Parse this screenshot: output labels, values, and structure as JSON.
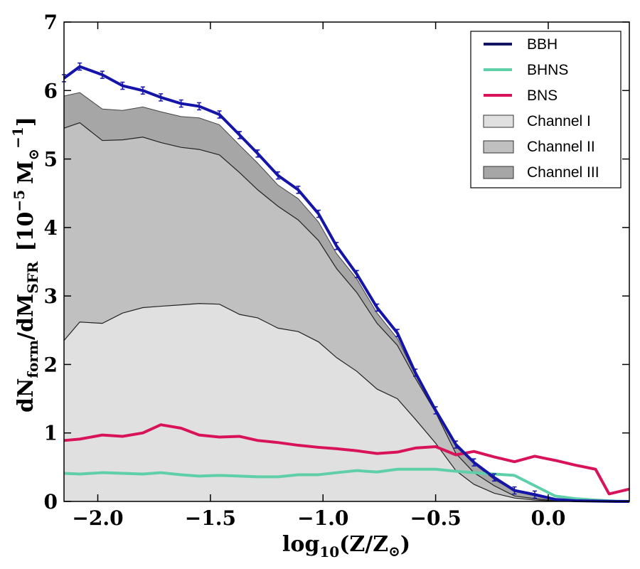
{
  "chart_data": {
    "type": "area",
    "xlabel": "log10(Z/Z⊙)",
    "xlabel_parts": {
      "main": "log",
      "sub": "10",
      "rest": "(Z/Z",
      "sun": "⊙",
      "close": ")"
    },
    "ylabel_parts": {
      "d1": "dN",
      "sub1": "form",
      "slash": "/dM",
      "sub2": "SFR",
      "unit": "[10",
      "exp": "−5",
      "unitM": "M",
      "sunsub": "⊙",
      "minus1": "−1",
      "close": "]"
    },
    "xlim": [
      -2.15,
      0.36
    ],
    "ylim": [
      0,
      7
    ],
    "xticks": [
      -2.0,
      -1.5,
      -1.0,
      -0.5,
      0.0
    ],
    "xtick_labels": [
      "−2.0",
      "−1.5",
      "−1.0",
      "−0.5",
      "0.0"
    ],
    "yticks": [
      0,
      1,
      2,
      3,
      4,
      5,
      6,
      7
    ],
    "ytick_labels": [
      "0",
      "1",
      "2",
      "3",
      "4",
      "5",
      "6",
      "7"
    ],
    "legend": {
      "position": "top-right",
      "entries": [
        {
          "label": "BBH",
          "kind": "line",
          "color": "#141464"
        },
        {
          "label": "BHNS",
          "kind": "line",
          "color": "#5fcfa8"
        },
        {
          "label": "BNS",
          "kind": "line",
          "color": "#d8135a"
        },
        {
          "label": "Channel I",
          "kind": "patch",
          "color": "#e0e0e0"
        },
        {
          "label": "Channel II",
          "kind": "patch",
          "color": "#c0c0c0"
        },
        {
          "label": "Channel III",
          "kind": "patch",
          "color": "#a6a6a6"
        }
      ]
    },
    "stacked_areas": {
      "x": [
        -2.15,
        -2.08,
        -1.98,
        -1.89,
        -1.8,
        -1.72,
        -1.63,
        -1.55,
        -1.46,
        -1.37,
        -1.29,
        -1.2,
        -1.11,
        -1.02,
        -0.94,
        -0.85,
        -0.76,
        -0.67,
        -0.59,
        -0.5,
        -0.41,
        -0.33,
        -0.24,
        -0.15,
        -0.06,
        0.03,
        0.12,
        0.21,
        0.3,
        0.36
      ],
      "series": [
        {
          "name": "Channel I",
          "color": "#e0e0e0",
          "cumulative": [
            2.35,
            2.62,
            2.6,
            2.75,
            2.83,
            2.85,
            2.87,
            2.89,
            2.88,
            2.73,
            2.68,
            2.53,
            2.48,
            2.33,
            2.1,
            1.9,
            1.64,
            1.5,
            1.2,
            0.85,
            0.45,
            0.25,
            0.12,
            0.05,
            0.02,
            0.005,
            0.0,
            0.0,
            0.0,
            0.0
          ]
        },
        {
          "name": "Channel II",
          "color": "#c0c0c0",
          "cumulative": [
            5.45,
            5.53,
            5.27,
            5.28,
            5.32,
            5.24,
            5.17,
            5.14,
            5.06,
            4.8,
            4.55,
            4.31,
            4.11,
            3.81,
            3.4,
            3.05,
            2.6,
            2.28,
            1.8,
            1.3,
            0.7,
            0.42,
            0.23,
            0.08,
            0.04,
            0.01,
            0.0,
            0.0,
            0.0,
            0.0
          ]
        },
        {
          "name": "Channel III",
          "color": "#a6a6a6",
          "cumulative": [
            5.92,
            5.97,
            5.73,
            5.71,
            5.76,
            5.69,
            5.62,
            5.6,
            5.5,
            5.2,
            4.94,
            4.62,
            4.42,
            4.08,
            3.62,
            3.25,
            2.75,
            2.38,
            1.85,
            1.33,
            0.8,
            0.55,
            0.32,
            0.15,
            0.08,
            0.02,
            0.0,
            0.0,
            0.0,
            0.0
          ]
        }
      ]
    },
    "series": [
      {
        "name": "BBH",
        "color": "#1414a8",
        "width": 4,
        "x": [
          -2.15,
          -2.08,
          -1.98,
          -1.89,
          -1.8,
          -1.72,
          -1.63,
          -1.55,
          -1.46,
          -1.37,
          -1.29,
          -1.2,
          -1.11,
          -1.02,
          -0.94,
          -0.85,
          -0.76,
          -0.67,
          -0.59,
          -0.5,
          -0.41,
          -0.33,
          -0.24,
          -0.15,
          -0.06,
          0.03,
          0.12,
          0.21,
          0.3,
          0.36
        ],
        "values": [
          6.18,
          6.35,
          6.23,
          6.07,
          6.0,
          5.9,
          5.81,
          5.77,
          5.65,
          5.35,
          5.08,
          4.76,
          4.55,
          4.2,
          3.73,
          3.32,
          2.83,
          2.46,
          1.88,
          1.33,
          0.83,
          0.57,
          0.35,
          0.16,
          0.1,
          0.03,
          0.01,
          0.005,
          0.0,
          0.0
        ],
        "errorbars": true
      },
      {
        "name": "BHNS",
        "color": "#5fcfa8",
        "width": 4,
        "x": [
          -2.15,
          -2.08,
          -1.98,
          -1.89,
          -1.8,
          -1.72,
          -1.63,
          -1.55,
          -1.46,
          -1.37,
          -1.29,
          -1.2,
          -1.11,
          -1.02,
          -0.94,
          -0.85,
          -0.76,
          -0.67,
          -0.59,
          -0.5,
          -0.41,
          -0.33,
          -0.24,
          -0.15,
          -0.06,
          0.03,
          0.12,
          0.21,
          0.3,
          0.36
        ],
        "values": [
          0.41,
          0.4,
          0.42,
          0.41,
          0.4,
          0.42,
          0.39,
          0.37,
          0.38,
          0.37,
          0.36,
          0.36,
          0.39,
          0.39,
          0.42,
          0.45,
          0.43,
          0.47,
          0.47,
          0.47,
          0.44,
          0.42,
          0.4,
          0.38,
          0.23,
          0.08,
          0.04,
          0.02,
          0.005,
          0.0
        ],
        "errorbars": false
      },
      {
        "name": "BNS",
        "color": "#d8135a",
        "width": 4,
        "x": [
          -2.15,
          -2.08,
          -1.98,
          -1.89,
          -1.8,
          -1.72,
          -1.63,
          -1.55,
          -1.46,
          -1.37,
          -1.29,
          -1.2,
          -1.11,
          -1.02,
          -0.94,
          -0.85,
          -0.76,
          -0.67,
          -0.59,
          -0.5,
          -0.41,
          -0.33,
          -0.24,
          -0.15,
          -0.06,
          0.03,
          0.12,
          0.21,
          0.27,
          0.36
        ],
        "values": [
          0.89,
          0.91,
          0.97,
          0.95,
          1.0,
          1.12,
          1.07,
          0.97,
          0.94,
          0.95,
          0.89,
          0.86,
          0.82,
          0.79,
          0.77,
          0.74,
          0.7,
          0.72,
          0.78,
          0.8,
          0.68,
          0.73,
          0.65,
          0.58,
          0.66,
          0.6,
          0.53,
          0.47,
          0.11,
          0.18
        ],
        "errorbars": false
      }
    ]
  }
}
